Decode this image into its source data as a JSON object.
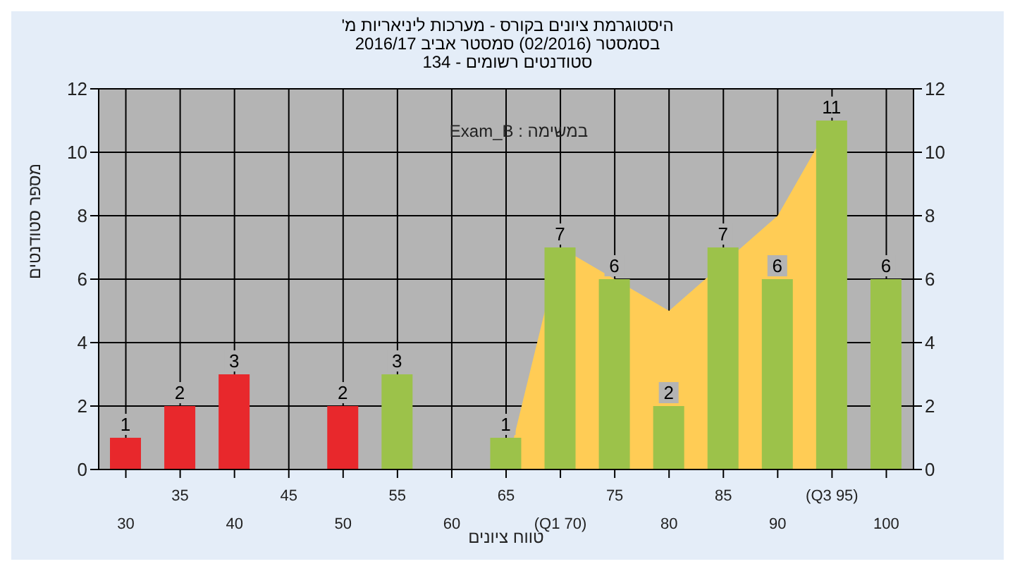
{
  "chart_data": {
    "type": "bar",
    "title": "היסטוגרמת ציונים בקורס - מערכות ליניאריות מ'",
    "subtitle": "בסמסטר (02/2016) סמסטר אביב 2016/17\nסטודנטים רשומים - 134",
    "xlabel": "טווח ציונים",
    "ylabel": "מספר סטודנטים",
    "annotations": [
      "במשימה : Exam_B"
    ],
    "categories": [
      "30",
      "35",
      "40",
      "45",
      "50",
      "55",
      "60",
      "65",
      "(Q1 70)",
      "75",
      "80",
      "85",
      "90",
      "(Q3 95)",
      "100"
    ],
    "series": [
      {
        "type": "area",
        "color": "#ffcc55",
        "values": [
          null,
          null,
          null,
          null,
          null,
          null,
          null,
          0,
          7,
          null,
          5,
          null,
          8,
          11,
          null
        ]
      },
      {
        "values": [
          1,
          2,
          3,
          null,
          2,
          3,
          null,
          1,
          7,
          6,
          2,
          7,
          6,
          11,
          6
        ],
        "value_labels": [
          "1",
          "2",
          "3",
          null,
          "2",
          "3",
          null,
          "1",
          "7",
          "6",
          "2",
          "7",
          "6",
          "11",
          "6"
        ],
        "colors": [
          "#e8282c",
          "#e8282c",
          "#e8282c",
          "#e8282c",
          "#e8282c",
          "#9cc24a",
          "#9cc24a",
          "#9cc24a",
          "#9cc24a",
          "#9cc24a",
          "#9cc24a",
          "#9cc24a",
          "#9cc24a",
          "#9cc24a",
          "#9cc24a"
        ]
      }
    ],
    "ylim": [
      0,
      12
    ],
    "yticks": [
      0,
      2,
      4,
      6,
      8,
      10,
      12
    ],
    "y2lim": [
      0,
      12
    ],
    "y2ticks": [
      0,
      2,
      4,
      6,
      8,
      10,
      12
    ],
    "grid": true,
    "legend": false
  }
}
